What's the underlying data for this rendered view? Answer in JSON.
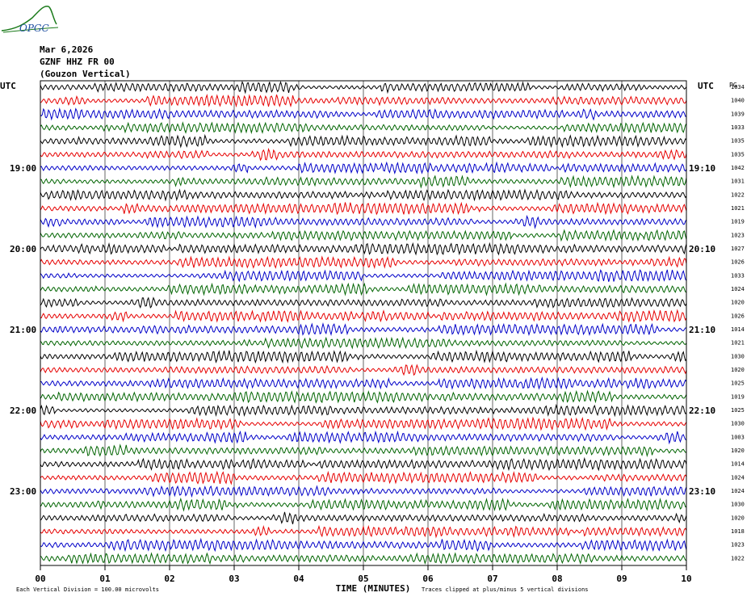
{
  "header": {
    "logo_text": "OPGC",
    "date": "Mar 6,2026",
    "station": "GZNF HHZ FR 00",
    "name": "(Gouzon Vertical)"
  },
  "chart_data": {
    "type": "line",
    "title": "",
    "left_axis_title": "UTC",
    "right_axis_title": "UTC",
    "right_extra_title": "PG",
    "xlabel": "TIME (MINUTES)",
    "xlim": [
      0,
      10
    ],
    "x_tick_labels": [
      "00",
      "01",
      "02",
      "03",
      "04",
      "05",
      "06",
      "07",
      "08",
      "09",
      "10"
    ],
    "trace_colors": [
      "#000000",
      "#e60000",
      "#0000c8",
      "#006400"
    ],
    "left_time_labels": [
      {
        "row": 6,
        "label": "19:00"
      },
      {
        "row": 12,
        "label": "20:00"
      },
      {
        "row": 18,
        "label": "21:00"
      },
      {
        "row": 24,
        "label": "22:00"
      },
      {
        "row": 30,
        "label": "23:00"
      }
    ],
    "right_time_labels": [
      {
        "row": 6,
        "label": "19:10"
      },
      {
        "row": 12,
        "label": "20:10"
      },
      {
        "row": 18,
        "label": "21:10"
      },
      {
        "row": 24,
        "label": "22:10"
      },
      {
        "row": 30,
        "label": "23:10"
      }
    ],
    "trace_values": [
      "1034",
      "1040",
      "1039",
      "1033",
      "1035",
      "1035",
      "1042",
      "1031",
      "1022",
      "1021",
      "1019",
      "1023",
      "1027",
      "1026",
      "1033",
      "1024",
      "1020",
      "1026",
      "1014",
      "1021",
      "1030",
      "1020",
      "1025",
      "1019",
      "1025",
      "1030",
      "1003",
      "1020",
      "1014",
      "1024",
      "1024",
      "1030",
      "1020",
      "1018",
      "1023",
      "1022"
    ],
    "footer_left": "Each Vertical Division =  100.00 microvolts",
    "footer_right": "Traces clipped at plus/minus 5 vertical divisions"
  }
}
